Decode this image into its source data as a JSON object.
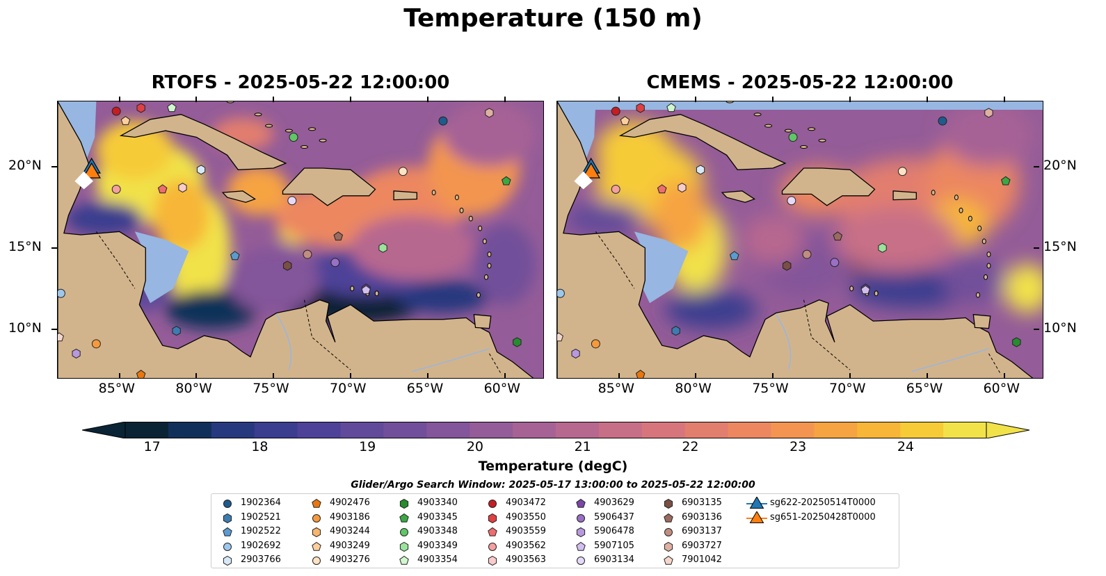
{
  "title": "Temperature (150 m)",
  "panels": [
    {
      "title": "RTOFS - 2025-05-22 12:00:00"
    },
    {
      "title": "CMEMS - 2025-05-22 12:00:00"
    }
  ],
  "map_extent": {
    "lon_min": -89,
    "lon_max": -57.5,
    "lat_min": 7,
    "lat_max": 24
  },
  "x_ticks": [
    "85°W",
    "80°W",
    "75°W",
    "70°W",
    "65°W",
    "60°W"
  ],
  "x_tick_values": [
    -85,
    -80,
    -75,
    -70,
    -65,
    -60
  ],
  "y_ticks": [
    "10°N",
    "15°N",
    "20°N"
  ],
  "y_tick_values": [
    10,
    15,
    20
  ],
  "colorbar": {
    "label": "Temperature (degC)",
    "ticks": [
      "17",
      "18",
      "19",
      "20",
      "21",
      "22",
      "23",
      "24"
    ],
    "min": 16.75,
    "max": 24.75,
    "colors": [
      "#0a2435",
      "#113059",
      "#27397e",
      "#3b3d8f",
      "#4e4298",
      "#614a9a",
      "#724f9a",
      "#83559a",
      "#945c98",
      "#a66295",
      "#b7688f",
      "#c76f87",
      "#d6767c",
      "#e27e6e",
      "#ec8760",
      "#f39550",
      "#f6a342",
      "#f7b637",
      "#f6cb37",
      "#f1e24a"
    ]
  },
  "legend_title": "Glider/Argo Search Window: 2025-05-17 13:00:00 to 2025-05-22 12:00:00",
  "legend": [
    {
      "label": "1902364",
      "shape": "circle",
      "color": "#1f5b8c"
    },
    {
      "label": "1902521",
      "shape": "hexagon",
      "color": "#3d7cb0"
    },
    {
      "label": "1902522",
      "shape": "pentagon",
      "color": "#5b9bd0"
    },
    {
      "label": "1902692",
      "shape": "circle",
      "color": "#9ec7ea"
    },
    {
      "label": "2903766",
      "shape": "hexagon",
      "color": "#d7e8f7"
    },
    {
      "label": "4902476",
      "shape": "pentagon",
      "color": "#e8770f"
    },
    {
      "label": "4903186",
      "shape": "circle",
      "color": "#f59a3c"
    },
    {
      "label": "4903244",
      "shape": "hexagon",
      "color": "#f8b56e"
    },
    {
      "label": "4903249",
      "shape": "pentagon",
      "color": "#fbcf9d"
    },
    {
      "label": "4903276",
      "shape": "circle",
      "color": "#fde2c4"
    },
    {
      "label": "4903340",
      "shape": "hexagon",
      "color": "#268c2e"
    },
    {
      "label": "4903345",
      "shape": "pentagon",
      "color": "#3ba843"
    },
    {
      "label": "4903348",
      "shape": "circle",
      "color": "#5fc765"
    },
    {
      "label": "4903349",
      "shape": "hexagon",
      "color": "#9be39c"
    },
    {
      "label": "4903354",
      "shape": "pentagon",
      "color": "#d1f7cf"
    },
    {
      "label": "4903472",
      "shape": "circle",
      "color": "#c41e22"
    },
    {
      "label": "4903550",
      "shape": "hexagon",
      "color": "#e04043"
    },
    {
      "label": "4903559",
      "shape": "pentagon",
      "color": "#ee6d6e"
    },
    {
      "label": "4903562",
      "shape": "circle",
      "color": "#f4a0a0"
    },
    {
      "label": "4903563",
      "shape": "hexagon",
      "color": "#f9cbcb"
    },
    {
      "label": "4903629",
      "shape": "pentagon",
      "color": "#7a47a6"
    },
    {
      "label": "5906437",
      "shape": "circle",
      "color": "#9a6fc6"
    },
    {
      "label": "5906478",
      "shape": "hexagon",
      "color": "#b899dd"
    },
    {
      "label": "5907105",
      "shape": "pentagon",
      "color": "#d2bfee"
    },
    {
      "label": "6903134",
      "shape": "circle",
      "color": "#e6d9f7"
    },
    {
      "label": "6903135",
      "shape": "hexagon",
      "color": "#7a4f44"
    },
    {
      "label": "6903136",
      "shape": "pentagon",
      "color": "#9a6b5f"
    },
    {
      "label": "6903137",
      "shape": "circle",
      "color": "#c08d80"
    },
    {
      "label": "6903727",
      "shape": "hexagon",
      "color": "#dfb1a2"
    },
    {
      "label": "7901042",
      "shape": "pentagon",
      "color": "#f4d7cc"
    },
    {
      "label": "sg622-20250514T0000",
      "shape": "triangle",
      "color": "#1f77b4"
    },
    {
      "label": "sg651-20250428T0000",
      "shape": "triangle",
      "color": "#ff7f0e"
    }
  ],
  "floats": [
    {
      "id": "1902364",
      "lon": -64.0,
      "lat": 22.8
    },
    {
      "id": "1902521",
      "lon": -81.3,
      "lat": 9.9
    },
    {
      "id": "1902522",
      "lon": -77.5,
      "lat": 14.5
    },
    {
      "id": "1902692",
      "lon": -88.8,
      "lat": 12.2
    },
    {
      "id": "2903766",
      "lon": -79.7,
      "lat": 19.8
    },
    {
      "id": "4902476",
      "lon": -83.6,
      "lat": 7.2
    },
    {
      "id": "4903186",
      "lon": -86.5,
      "lat": 9.1
    },
    {
      "id": "4903244",
      "lon": -74.1,
      "lat": 13.9
    },
    {
      "id": "4903249",
      "lon": -84.6,
      "lat": 22.8
    },
    {
      "id": "4903276",
      "lon": -66.6,
      "lat": 19.7
    },
    {
      "id": "4903340",
      "lon": -59.2,
      "lat": 9.2
    },
    {
      "id": "4903345",
      "lon": -59.9,
      "lat": 19.1
    },
    {
      "id": "4903348",
      "lon": -73.7,
      "lat": 21.8
    },
    {
      "id": "4903349",
      "lon": -67.9,
      "lat": 15.0
    },
    {
      "id": "4903354",
      "lon": -81.6,
      "lat": 23.6
    },
    {
      "id": "4903472",
      "lon": -85.2,
      "lat": 23.4
    },
    {
      "id": "4903550",
      "lon": -83.6,
      "lat": 23.6
    },
    {
      "id": "4903559",
      "lon": -82.2,
      "lat": 18.6
    },
    {
      "id": "4903562",
      "lon": -85.2,
      "lat": 18.6
    },
    {
      "id": "4903563",
      "lon": -80.9,
      "lat": 18.7
    },
    {
      "id": "4903629",
      "lon": -69.0,
      "lat": 12.5
    },
    {
      "id": "5906437",
      "lon": -71.0,
      "lat": 14.1
    },
    {
      "id": "5906478",
      "lon": -87.8,
      "lat": 8.5
    },
    {
      "id": "5907105",
      "lon": -69.0,
      "lat": 12.4
    },
    {
      "id": "6903134",
      "lon": -73.8,
      "lat": 17.9
    },
    {
      "id": "6903135",
      "lon": -74.1,
      "lat": 13.9
    },
    {
      "id": "6903136",
      "lon": -70.8,
      "lat": 15.7
    },
    {
      "id": "6903137",
      "lon": -72.8,
      "lat": 14.6
    },
    {
      "id": "6903727",
      "lon": -61.0,
      "lat": 23.3
    },
    {
      "id": "7901042",
      "lon": -88.9,
      "lat": 9.5
    },
    {
      "id": "sg622-20250514T0000",
      "lon": -86.8,
      "lat": 19.9
    },
    {
      "id": "sg651-20250428T0000",
      "lon": -86.8,
      "lat": 19.6
    }
  ]
}
